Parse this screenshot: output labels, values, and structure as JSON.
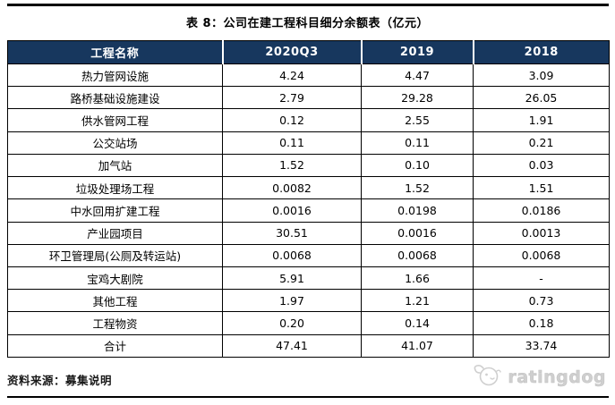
{
  "title": "表 8：公司在建工程科目细分余额表（亿元）",
  "table": {
    "columns": [
      "工程名称",
      "2020Q3",
      "2019",
      "2018"
    ],
    "rows": [
      {
        "name": "热力管网设施",
        "values": [
          "4.24",
          "4.47",
          "3.09"
        ]
      },
      {
        "name": "路桥基础设施建设",
        "values": [
          "2.79",
          "29.28",
          "26.05"
        ]
      },
      {
        "name": "供水管网工程",
        "values": [
          "0.12",
          "2.55",
          "1.91"
        ]
      },
      {
        "name": "公交站场",
        "values": [
          "0.11",
          "0.11",
          "0.21"
        ]
      },
      {
        "name": "加气站",
        "values": [
          "1.52",
          "0.10",
          "0.03"
        ]
      },
      {
        "name": "垃圾处理场工程",
        "values": [
          "0.0082",
          "1.52",
          "1.51"
        ]
      },
      {
        "name": "中水回用扩建工程",
        "values": [
          "0.0016",
          "0.0198",
          "0.0186"
        ]
      },
      {
        "name": "产业园项目",
        "values": [
          "30.51",
          "0.0016",
          "0.0013"
        ]
      },
      {
        "name": "环卫管理局(公厕及转运站)",
        "values": [
          "0.0068",
          "0.0068",
          "0.0068"
        ]
      },
      {
        "name": "宝鸡大剧院",
        "values": [
          "5.91",
          "1.66",
          "-"
        ]
      },
      {
        "name": "其他工程",
        "values": [
          "1.97",
          "1.21",
          "0.73"
        ]
      },
      {
        "name": "工程物资",
        "values": [
          "0.20",
          "0.14",
          "0.18"
        ]
      },
      {
        "name": "合计",
        "values": [
          "47.41",
          "41.07",
          "33.74"
        ]
      }
    ]
  },
  "footer": {
    "source_label": "资料来源：募集说明",
    "logo_text": "ratingdog"
  },
  "icons": {
    "logo_icon": "dog-icon"
  },
  "colors": {
    "header_bg": "#17375E",
    "header_text": "#FFFFFF",
    "border": "#000000",
    "logo_gray": "#CFCFCF"
  }
}
